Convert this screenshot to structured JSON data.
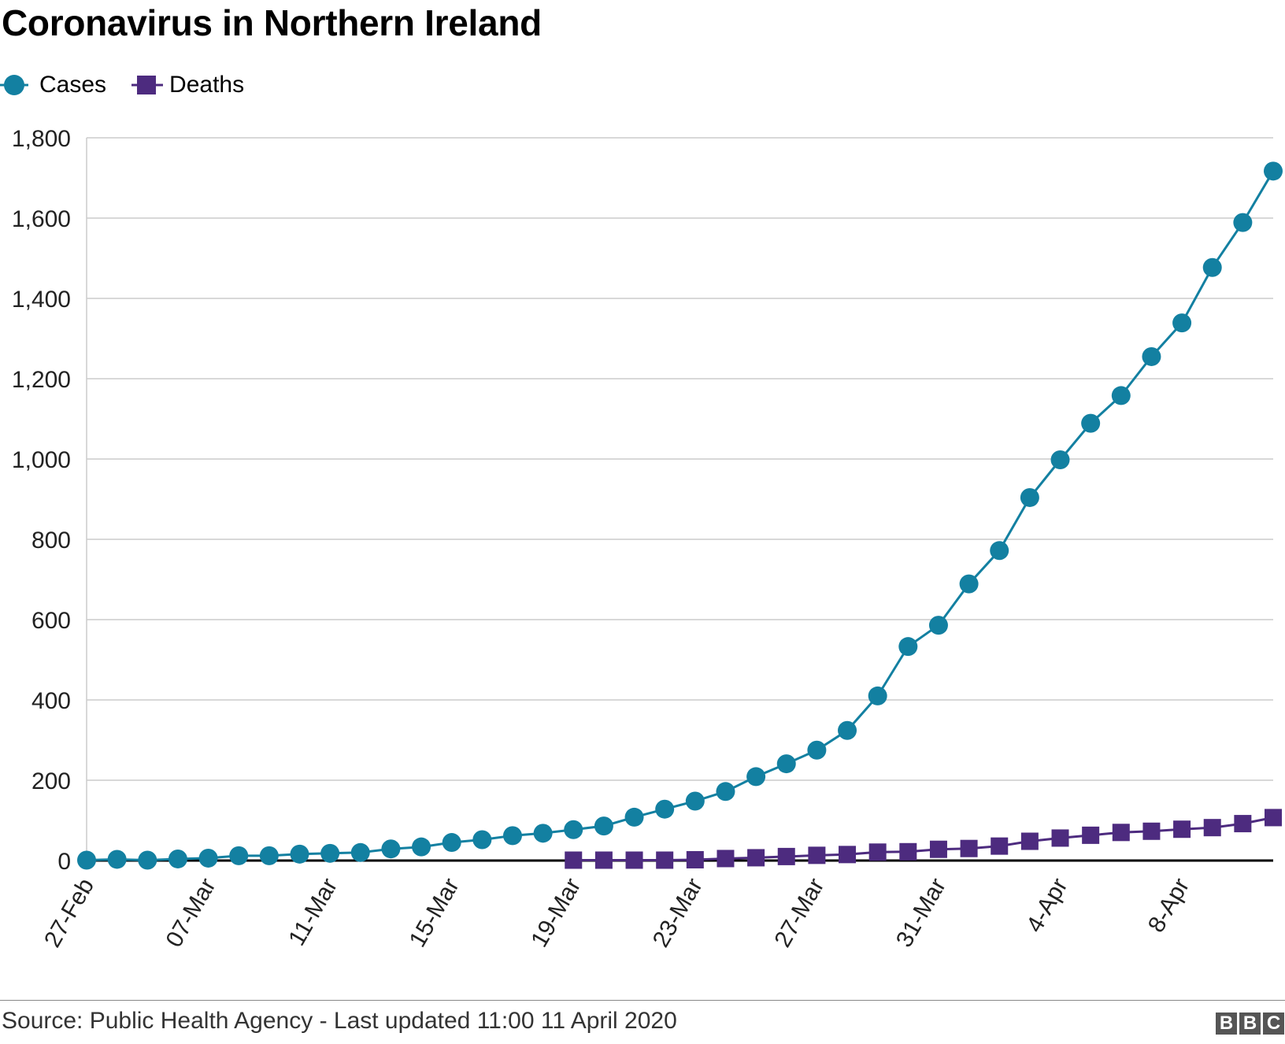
{
  "title": "Coronavirus in Northern Ireland",
  "legend": {
    "items": [
      {
        "label": "Cases",
        "color": "#1380a1",
        "marker": "circle"
      },
      {
        "label": "Deaths",
        "color": "#4d2b7f",
        "marker": "square"
      }
    ]
  },
  "footer": {
    "source": "Source: Public Health Agency - Last updated 11:00 11 April 2020",
    "logo_letters": [
      "B",
      "B",
      "C"
    ]
  },
  "chart_data": {
    "type": "line",
    "title": "Coronavirus in Northern Ireland",
    "xlabel": "",
    "ylabel": "",
    "ylim": [
      0,
      1800
    ],
    "yticks": [
      0,
      200,
      400,
      600,
      800,
      1000,
      1200,
      1400,
      1600,
      1800
    ],
    "ytick_labels": [
      "0",
      "200",
      "400",
      "600",
      "800",
      "1,000",
      "1,200",
      "1,400",
      "1,600",
      "1,800"
    ],
    "grid": true,
    "legend_position": "top-left",
    "x": [
      "27-Feb",
      "28-Feb",
      "29-Feb",
      "05-Mar",
      "07-Mar",
      "08-Mar",
      "09-Mar",
      "10-Mar",
      "11-Mar",
      "12-Mar",
      "13-Mar",
      "14-Mar",
      "15-Mar",
      "16-Mar",
      "17-Mar",
      "18-Mar",
      "19-Mar",
      "20-Mar",
      "21-Mar",
      "22-Mar",
      "23-Mar",
      "24-Mar",
      "25-Mar",
      "26-Mar",
      "27-Mar",
      "28-Mar",
      "29-Mar",
      "30-Mar",
      "31-Mar",
      "1-Apr",
      "2-Apr",
      "3-Apr",
      "4-Apr",
      "5-Apr",
      "6-Apr",
      "7-Apr",
      "8-Apr",
      "9-Apr",
      "10-Apr",
      "11-Apr"
    ],
    "xtick_labels": [
      {
        "index": 0,
        "label": "27-Feb"
      },
      {
        "index": 4,
        "label": "07-Mar"
      },
      {
        "index": 8,
        "label": "11-Mar"
      },
      {
        "index": 12,
        "label": "15-Mar"
      },
      {
        "index": 16,
        "label": "19-Mar"
      },
      {
        "index": 20,
        "label": "23-Mar"
      },
      {
        "index": 24,
        "label": "27-Mar"
      },
      {
        "index": 28,
        "label": "31-Mar"
      },
      {
        "index": 32,
        "label": "4-Apr"
      },
      {
        "index": 36,
        "label": "8-Apr"
      }
    ],
    "series": [
      {
        "name": "Cases",
        "color": "#1380a1",
        "marker": "circle",
        "values": [
          1,
          3,
          1,
          4,
          6,
          12,
          12,
          16,
          18,
          20,
          29,
          34,
          45,
          52,
          62,
          68,
          77,
          86,
          108,
          128,
          148,
          172,
          209,
          241,
          275,
          324,
          410,
          533,
          586,
          689,
          772,
          904,
          998,
          1089,
          1158,
          1255,
          1339,
          1477,
          1589,
          1717
        ]
      },
      {
        "name": "Deaths",
        "color": "#4d2b7f",
        "marker": "square",
        "values": [
          null,
          null,
          null,
          null,
          null,
          null,
          null,
          null,
          null,
          null,
          null,
          null,
          null,
          null,
          null,
          null,
          1,
          1,
          1,
          1,
          2,
          5,
          7,
          10,
          13,
          15,
          21,
          22,
          28,
          30,
          36,
          48,
          56,
          63,
          70,
          73,
          78,
          82,
          92,
          107
        ]
      }
    ]
  }
}
